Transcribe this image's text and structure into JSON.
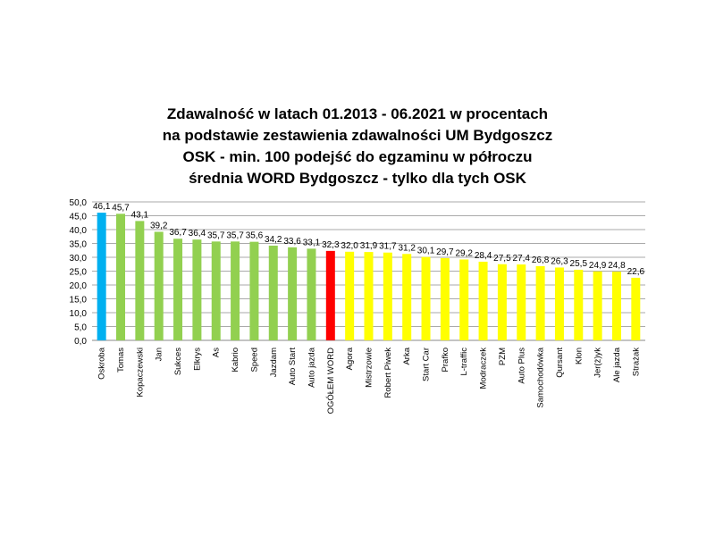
{
  "chart_data": {
    "type": "bar",
    "title": [
      "Zdawalność w latach 01.2013 - 06.2021 w procentach",
      "na podstawie zestawienia zdawalności UM Bydgoszcz",
      "OSK - min. 100 podejść do egzaminu w półroczu",
      "średnia WORD Bydgoszcz - tylko dla tych OSK"
    ],
    "categories": [
      "Oskroba",
      "Tomas",
      "Kopaczewski",
      "Jan",
      "Sukces",
      "Elkrys",
      "As",
      "Kabrio",
      "Speed",
      "Jazdam",
      "Auto Start",
      "Auto jazda",
      "OGÓŁEM WORD",
      "Agora",
      "Mistrzowie",
      "Robert Piwek",
      "Arka",
      "Start Car",
      "Prafko",
      "L-traffic",
      "Modraczek",
      "PZM",
      "Auto Plus",
      "Samochodówka",
      "Qursant",
      "Klon",
      "Jer(ż)yk",
      "Ale jazda",
      "Strażak"
    ],
    "values": [
      46.1,
      45.7,
      43.1,
      39.2,
      36.7,
      36.4,
      35.7,
      35.7,
      35.6,
      34.2,
      33.6,
      33.1,
      32.3,
      32.0,
      31.9,
      31.7,
      31.2,
      30.1,
      29.7,
      29.2,
      28.4,
      27.5,
      27.4,
      26.8,
      26.3,
      25.5,
      24.9,
      24.8,
      22.6
    ],
    "colors": [
      "#00B0F0",
      "#92D050",
      "#92D050",
      "#92D050",
      "#92D050",
      "#92D050",
      "#92D050",
      "#92D050",
      "#92D050",
      "#92D050",
      "#92D050",
      "#92D050",
      "#FF0000",
      "#FFFF00",
      "#FFFF00",
      "#FFFF00",
      "#FFFF00",
      "#FFFF00",
      "#FFFF00",
      "#FFFF00",
      "#FFFF00",
      "#FFFF00",
      "#FFFF00",
      "#FFFF00",
      "#FFFF00",
      "#FFFF00",
      "#FFFF00",
      "#FFFF00",
      "#FFFF00"
    ],
    "ylim": [
      0,
      50
    ],
    "yticks": [
      "0,0",
      "5,0",
      "10,0",
      "15,0",
      "20,0",
      "25,0",
      "30,0",
      "35,0",
      "40,0",
      "45,0",
      "50,0"
    ],
    "grid": true,
    "xlabel": "",
    "ylabel": ""
  }
}
